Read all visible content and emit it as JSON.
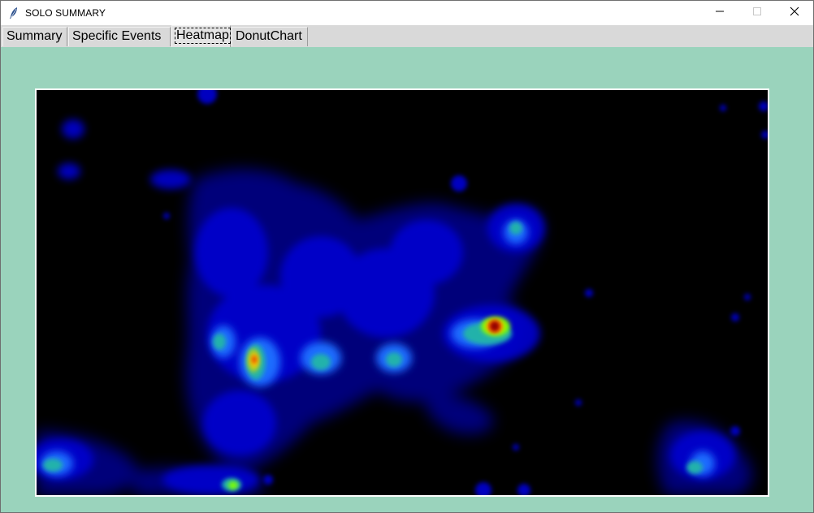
{
  "window": {
    "title": "SOLO SUMMARY",
    "icon": "feather-icon",
    "controls": [
      "minimize-icon",
      "maximize-icon",
      "close-icon"
    ]
  },
  "tabs": [
    {
      "label": "Summary",
      "selected": false
    },
    {
      "label": "Specific Events",
      "selected": false
    },
    {
      "label": "Heatmap",
      "selected": true
    },
    {
      "label": "DonutChart",
      "selected": false
    }
  ],
  "heatmap": {
    "colormap": [
      "#000000",
      "#00008b",
      "#0000ff",
      "#1e90ff",
      "#20b2aa",
      "#7fff00",
      "#ffff00",
      "#ff8c00",
      "#ff0000",
      "#800000"
    ]
  },
  "colors": {
    "background": "#9ad3bc",
    "tabbar": "#d9d9d9",
    "titlebar": "#ffffff"
  }
}
